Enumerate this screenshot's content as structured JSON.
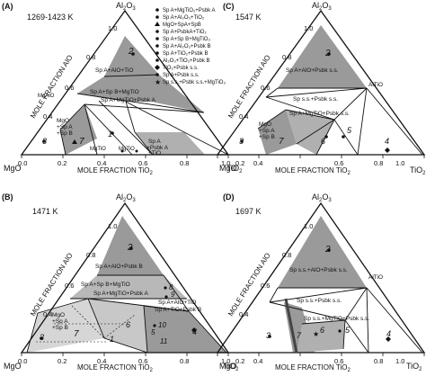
{
  "panels": [
    {
      "id": "A",
      "letter": "(A)",
      "temperature": "1269-1423 K",
      "apex_top": "Al",
      "apex_top_sub": "2",
      "apex_top_o": "O",
      "apex_top_sub2": "3",
      "apex_left": "MgO",
      "apex_right": "TiO",
      "apex_right_sub": "2",
      "bottom_title": "MOLE FRACTION TiO",
      "bottom_title_sub": "2",
      "left_title": "MOLE FRACTION Al",
      "left_title_tail": "O",
      "bottom_ticks": [
        "0.0",
        "0.2",
        "0.4",
        "0.6",
        "0.8",
        "1.0"
      ],
      "left_ticks": [
        "0.0",
        "0.2",
        "0.4",
        "0.6",
        "0.8",
        "1.0"
      ],
      "compounds": [
        "MgTiO",
        "MgTi",
        "O",
        "Mg",
        "TiO",
        "MgAl",
        "O"
      ],
      "region_labels": [
        "2",
        "Sp A+Al",
        "O",
        "+TiO",
        "Sp A+Sp B+MgTiO",
        "Sp A+MgTiO",
        "+Psbk A",
        "MgO",
        "+Sp A",
        "+Sp B",
        "3",
        "7",
        "1",
        "Sp A",
        "+Psbk A",
        "+TiO"
      ],
      "legend": [
        {
          "marker": "filled-circle",
          "text": "Sp A+MgTiO₂+Psbk A"
        },
        {
          "marker": "filled-circle",
          "text": "Sp A+Al₂O₃+TiO₂"
        },
        {
          "marker": "triangle",
          "text": "MgO+SpA+SpB"
        },
        {
          "marker": "filled-circle",
          "text": "Sp A+PsbkA+TiO₂"
        },
        {
          "marker": "filled-circle",
          "text": "Sp A+Sp B+MgTiO₃"
        },
        {
          "marker": "filled-circle",
          "text": "Sp A+Al₂O₃+Psbk B"
        },
        {
          "marker": "filled-circle",
          "text": "Sp A+TiO₂+Psbk B"
        },
        {
          "marker": "filled-circle",
          "text": "Al₂O₃+TiO₂+Psbk B"
        },
        {
          "marker": "diamond",
          "text": "TiO₂+Psbk s.s."
        },
        {
          "marker": "filled-circle",
          "text": "Sp A+Psbk s.s."
        },
        {
          "marker": "star",
          "text": "Sp s.s.+Psbk s.s.+MgTiO₃"
        }
      ]
    },
    {
      "id": "B",
      "letter": "(B)",
      "temperature": "1471 K",
      "apex_top": "Al",
      "apex_top_sub": "2",
      "apex_top_o": "O",
      "apex_top_sub2": "3",
      "apex_left": "MgO",
      "apex_right": "TiO",
      "apex_right_sub": "2",
      "bottom_title": "MOLE FRACTION TiO",
      "bottom_title_sub": "2",
      "left_title": "MOLE FRACTION Al",
      "left_title_tail": "O",
      "bottom_ticks": [
        "0.0",
        "0.2",
        "0.4",
        "0.6",
        "0.8",
        "1.0"
      ],
      "left_ticks": [
        "0.0",
        "0.2",
        "0.4",
        "0.6",
        "0.8",
        "1.0"
      ],
      "region_labels": [
        "2",
        "Sp A+Al",
        "O",
        "+Psbk B",
        "Sp A+Sp B+MgTiO",
        "Sp A+MgTiO",
        "+Psbk A",
        "Sp A+Al",
        "O",
        "+TiO",
        "Sp A+TiO",
        "+Psbk B",
        "MgO",
        "+Sp A",
        "+Sp B",
        "3",
        "7",
        "6",
        "1",
        "9",
        "8",
        "10",
        "4",
        "5",
        "11"
      ]
    },
    {
      "id": "C",
      "letter": "(C)",
      "temperature": "1547 K",
      "apex_top": "Al",
      "apex_top_sub": "2",
      "apex_top_o": "O",
      "apex_top_sub2": "3",
      "apex_left": "MgO",
      "apex_right": "TiO",
      "apex_right_sub": "2",
      "bottom_title": "MOLE FRACTION TiO",
      "bottom_title_sub": "2",
      "left_title": "MOLE FRACTION Al",
      "left_title_tail": "O",
      "bottom_ticks": [
        "0.0",
        "0.2",
        "0.4",
        "0.6",
        "0.8",
        "1.0"
      ],
      "left_ticks": [
        "0.0",
        "0.2",
        "0.4",
        "0.6",
        "0.8",
        "1.0"
      ],
      "region_labels": [
        "2",
        "Sp A+Al",
        "O",
        "+Psbk s.s.",
        "Al",
        "TiO",
        "Sp s.s.+Psbk s.s.",
        "Sp A+MgTiO",
        "+Psbk s.s.",
        "MgO",
        "+Sp A",
        "+Sp B",
        "3",
        "7",
        "6",
        "5",
        "4"
      ]
    },
    {
      "id": "D",
      "letter": "(D)",
      "temperature": "1697 K",
      "apex_top": "Al",
      "apex_top_sub": "2",
      "apex_top_o": "O",
      "apex_top_sub2": "3",
      "apex_left": "MgO",
      "apex_right": "TiO",
      "apex_right_sub": "2",
      "bottom_title": "MOLE FRACTION TiO",
      "bottom_title_sub": "2",
      "left_title": "MOLE FRACTION Al",
      "left_title_tail": "O",
      "bottom_ticks": [
        "0.0",
        "0.2",
        "0.4",
        "0.6",
        "0.8",
        "1.0"
      ],
      "left_ticks": [
        "0.0",
        "0.2",
        "0.4",
        "0.6",
        "0.8",
        "1.0"
      ],
      "region_labels": [
        "2",
        "Sp s.s.+Al",
        "O",
        "+Psbk s.s.",
        "Al",
        "TiO",
        "Sp s.s.+Psbk s.s.",
        "Sp s.s.+MgTiO",
        "+Psbk s.s.",
        "3",
        "7",
        "6",
        "5",
        "4"
      ]
    }
  ]
}
